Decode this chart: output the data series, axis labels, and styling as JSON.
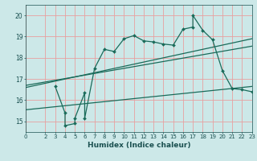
{
  "xlabel": "Humidex (Indice chaleur)",
  "bg_color": "#cce8e8",
  "grid_color": "#e8a0a0",
  "line_color": "#1a6b5a",
  "xlim": [
    0,
    23
  ],
  "ylim": [
    14.5,
    20.5
  ],
  "xticks": [
    0,
    2,
    3,
    4,
    5,
    6,
    7,
    8,
    9,
    10,
    11,
    12,
    13,
    14,
    15,
    16,
    17,
    18,
    19,
    20,
    21,
    22,
    23
  ],
  "yticks": [
    15,
    16,
    17,
    18,
    19,
    20
  ],
  "curve_x": [
    3,
    4,
    4,
    5,
    5,
    6,
    6,
    7,
    8,
    9,
    10,
    11,
    12,
    13,
    14,
    15,
    16,
    17,
    17,
    18,
    19,
    20,
    21,
    22,
    23
  ],
  "curve_y": [
    16.65,
    15.4,
    14.8,
    14.9,
    15.15,
    16.35,
    15.15,
    17.5,
    18.4,
    18.3,
    18.9,
    19.05,
    18.8,
    18.75,
    18.65,
    18.6,
    19.35,
    19.45,
    20.0,
    19.3,
    18.85,
    17.4,
    16.55,
    16.5,
    16.4
  ],
  "line1_x": [
    0,
    23
  ],
  "line1_y": [
    16.7,
    18.55
  ],
  "line2_x": [
    0,
    23
  ],
  "line2_y": [
    16.6,
    18.9
  ],
  "line3_x": [
    0,
    23
  ],
  "line3_y": [
    15.55,
    16.65
  ]
}
